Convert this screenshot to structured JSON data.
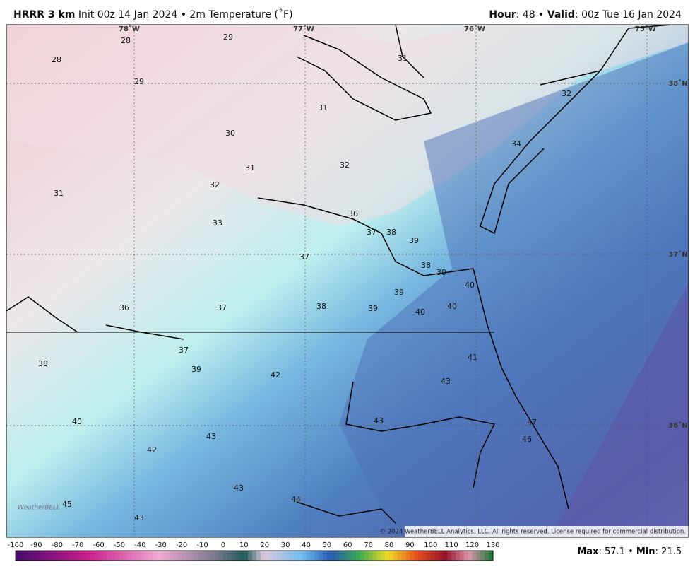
{
  "header": {
    "model": "HRRR 3 km",
    "description": "Init 00z 14 Jan 2024 • 2m Temperature (˚F)",
    "hour_label": "Hour",
    "hour_value": ": 48 •",
    "valid_label": "Valid",
    "valid_value": ": 00z Tue 16 Jan 2024"
  },
  "map": {
    "lon_labels": [
      "78˚W",
      "77˚W",
      "76˚W",
      "75˚W"
    ],
    "lat_labels": [
      "38˚N",
      "37˚N",
      "36˚N"
    ],
    "stations": [
      28,
      29,
      28,
      29,
      31,
      32,
      31,
      30,
      34,
      31,
      32,
      31,
      32,
      36,
      33,
      37,
      38,
      39,
      37,
      38,
      39,
      40,
      39,
      36,
      37,
      38,
      39,
      40,
      40,
      37,
      41,
      38,
      39,
      42,
      43,
      40,
      43,
      47,
      46,
      43,
      42,
      43,
      44,
      45,
      43
    ],
    "copyright": "© 2024 WeatherBELL Analytics, LLC. All rights reserved. License required for commercial distribution.",
    "logo": "WeatherBELL"
  },
  "colorbar": {
    "ticks": [
      -100,
      -90,
      -80,
      -70,
      -60,
      -50,
      -40,
      -30,
      -20,
      -10,
      0,
      10,
      20,
      30,
      40,
      50,
      60,
      70,
      80,
      90,
      100,
      110,
      120,
      130
    ]
  },
  "footer": {
    "max_label": "Max",
    "max": 57.1,
    "separator": "•",
    "min_label": "Min",
    "min": 21.5
  }
}
